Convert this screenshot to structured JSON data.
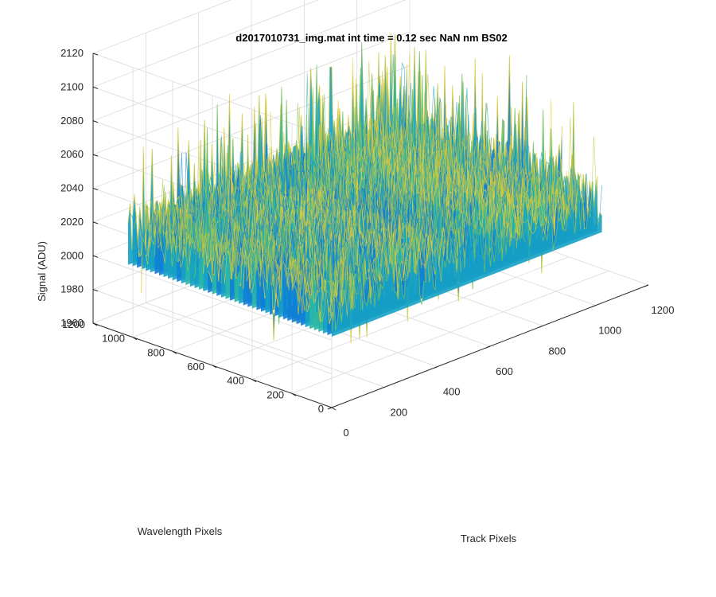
{
  "chart_data": {
    "type": "surface",
    "title": "d2017010731_img.mat int time = 0.12 sec  NaN nm BS02",
    "xlabel": "Track Pixels",
    "ylabel": "Wavelength Pixels",
    "zlabel": "Signal (ADU)",
    "xlim": [
      0,
      1200
    ],
    "ylim": [
      0,
      1200
    ],
    "zlim": [
      1960,
      2120
    ],
    "x_ticks": [
      "0",
      "200",
      "400",
      "600",
      "800",
      "1000",
      "1200"
    ],
    "y_ticks": [
      "0",
      "200",
      "400",
      "600",
      "800",
      "1000",
      "1200"
    ],
    "z_ticks": [
      "1960",
      "1980",
      "2000",
      "2020",
      "2040",
      "2060",
      "2080",
      "2100",
      "2120"
    ],
    "data_extent": {
      "x": [
        0,
        1024
      ],
      "y": [
        0,
        1024
      ]
    },
    "signal_mean": 2020,
    "signal_noise_range": [
      1975,
      2110
    ],
    "colormap": [
      "#0e7fd6",
      "#15a1c4",
      "#2ab7a6",
      "#7bc15e",
      "#c7c53d",
      "#e3cf3b"
    ],
    "grid": true
  }
}
